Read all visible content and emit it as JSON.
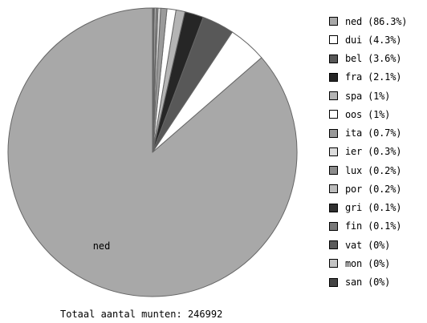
{
  "chart_data": {
    "type": "pie",
    "slices": [
      {
        "label": "ned",
        "value": 86.3,
        "color": "#a8a8a8"
      },
      {
        "label": "dui",
        "value": 4.3,
        "color": "#ffffff"
      },
      {
        "label": "bel",
        "value": 3.6,
        "color": "#585858"
      },
      {
        "label": "fra",
        "value": 2.1,
        "color": "#262626"
      },
      {
        "label": "spa",
        "value": 1,
        "color": "#b4b4b4"
      },
      {
        "label": "oos",
        "value": 1,
        "color": "#ffffff"
      },
      {
        "label": "ita",
        "value": 0.7,
        "color": "#9a9a9a"
      },
      {
        "label": "ier",
        "value": 0.3,
        "color": "#dcdcdc"
      },
      {
        "label": "lux",
        "value": 0.2,
        "color": "#8c8c8c"
      },
      {
        "label": "por",
        "value": 0.2,
        "color": "#bcbcbc"
      },
      {
        "label": "gri",
        "value": 0.1,
        "color": "#303030"
      },
      {
        "label": "fin",
        "value": 0.1,
        "color": "#787878"
      },
      {
        "label": "vat",
        "value": 0,
        "color": "#5a5a5a"
      },
      {
        "label": "mon",
        "value": 0,
        "color": "#c4c4c4"
      },
      {
        "label": "san",
        "value": 0,
        "color": "#444444"
      }
    ],
    "legend_entries": [
      "ned (86.3%)",
      "dui (4.3%)",
      "bel (3.6%)",
      "fra (2.1%)",
      "spa (1%)",
      "oos (1%)",
      "ita (0.7%)",
      "ier (0.3%)",
      "lux (0.2%)",
      "por (0.2%)",
      "gri (0.1%)",
      "fin (0.1%)",
      "vat (0%)",
      "mon (0%)",
      "san (0%)"
    ],
    "slice_label": "ned",
    "legend_position": "right"
  },
  "footer": {
    "total": "Totaal aantal munten: 246992"
  }
}
